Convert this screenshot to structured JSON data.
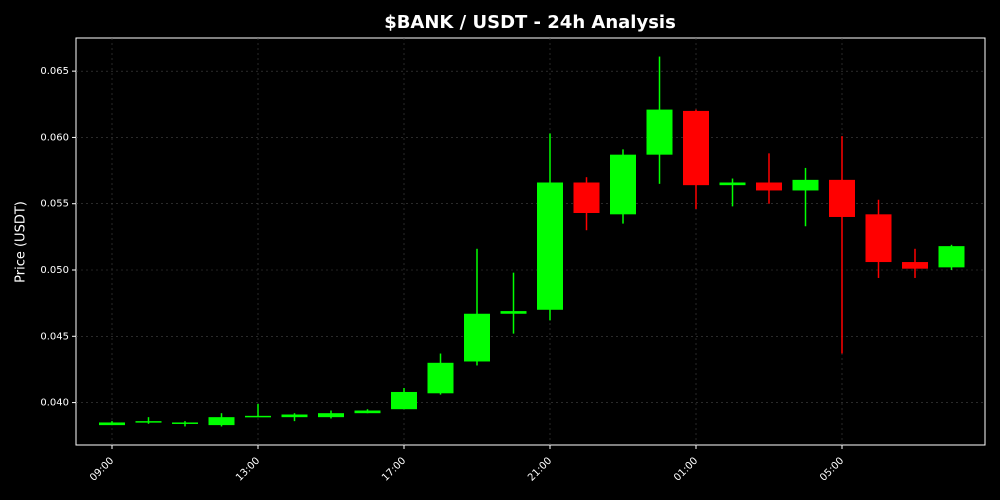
{
  "chart_data": {
    "type": "candlestick",
    "title": "$BANK / USDT - 24h Analysis",
    "y_label": "Price (USDT)",
    "categories": [
      "09:00",
      null,
      null,
      null,
      "13:00",
      null,
      null,
      null,
      "17:00",
      null,
      null,
      null,
      "21:00",
      null,
      null,
      null,
      "01:00",
      null,
      null,
      null,
      "05:00",
      null,
      null,
      null
    ],
    "open": [
      0.0383,
      0.0385,
      0.0384,
      0.0383,
      0.0389,
      0.0389,
      0.0389,
      0.0392,
      0.0395,
      0.0407,
      0.0431,
      0.0467,
      0.047,
      0.0566,
      0.0542,
      0.0587,
      0.062,
      0.0564,
      0.0566,
      0.056,
      0.0568,
      0.0542,
      0.0506,
      0.0502
    ],
    "high": [
      0.0386,
      0.0389,
      0.0386,
      0.0392,
      0.0399,
      0.0392,
      0.0394,
      0.0395,
      0.0411,
      0.0437,
      0.0516,
      0.0498,
      0.0603,
      0.057,
      0.0591,
      0.0661,
      0.0621,
      0.0569,
      0.0588,
      0.0577,
      0.0601,
      0.0553,
      0.0516,
      0.0519
    ],
    "low": [
      0.0383,
      0.0384,
      0.0382,
      0.0382,
      0.0389,
      0.0386,
      0.0388,
      0.0392,
      0.0395,
      0.0406,
      0.0428,
      0.0452,
      0.0462,
      0.053,
      0.0535,
      0.0565,
      0.0546,
      0.0548,
      0.055,
      0.0533,
      0.0437,
      0.0494,
      0.0494,
      0.05
    ],
    "close": [
      0.0385,
      0.0386,
      0.0385,
      0.0389,
      0.039,
      0.0391,
      0.0392,
      0.0394,
      0.0408,
      0.043,
      0.0467,
      0.0469,
      0.0566,
      0.0543,
      0.0587,
      0.0621,
      0.0564,
      0.0566,
      0.056,
      0.0568,
      0.054,
      0.0506,
      0.0501,
      0.0518
    ],
    "up_color": "#00ff00",
    "down_color": "#ff0000",
    "ylim": [
      0.0368,
      0.0675
    ],
    "yticks": [
      {
        "value": 0.04,
        "label": "0.040"
      },
      0.045,
      {
        "value": 0.05,
        "label": "0.050"
      },
      0.055,
      {
        "value": 0.06,
        "label": "0.060"
      },
      0.065
    ],
    "grid": true
  }
}
